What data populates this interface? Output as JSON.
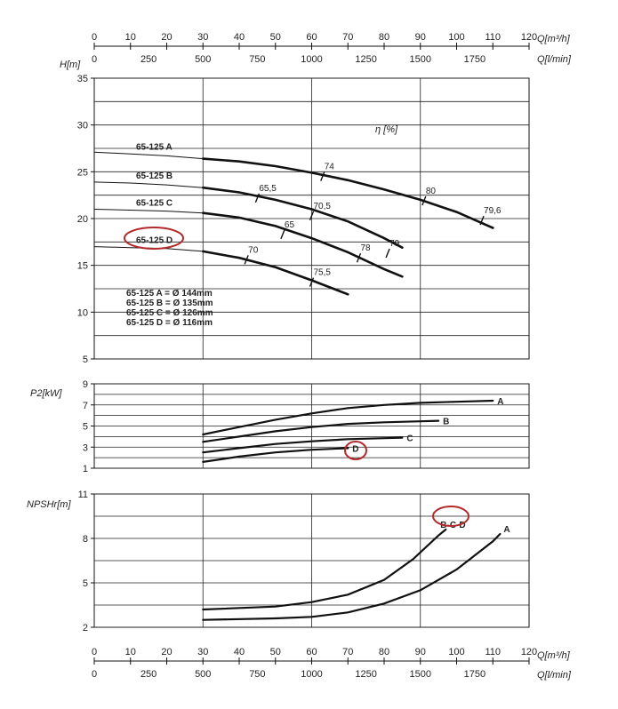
{
  "chart_data": [
    {
      "type": "line",
      "title": "",
      "ylabel": "H[m]",
      "eta_label": "η [%]",
      "xlabel_top_m3h": "Q[m³/h]",
      "xlabel_top_ls": "Q[l/min]",
      "xlabel_bottom_m3h": "Q[m³/h]",
      "xlabel_bottom_ls": "Q[l/min]",
      "xlim": [
        0,
        120
      ],
      "ylim": [
        5,
        35
      ],
      "yticks": [
        5,
        10,
        15,
        20,
        25,
        30,
        35
      ],
      "xticks_m3h": [
        0,
        10,
        20,
        30,
        40,
        50,
        60,
        70,
        80,
        90,
        100,
        110,
        120
      ],
      "xticks_lmin": [
        0,
        250,
        500,
        750,
        1000,
        1250,
        1500,
        1750
      ],
      "series": [
        {
          "name": "65-125 A",
          "thin": [
            [
              0,
              27.1
            ],
            [
              10,
              26.9
            ],
            [
              20,
              26.7
            ],
            [
              30,
              26.4
            ]
          ],
          "thick": [
            [
              30,
              26.4
            ],
            [
              40,
              26.1
            ],
            [
              50,
              25.6
            ],
            [
              60,
              24.9
            ],
            [
              70,
              24.1
            ],
            [
              80,
              23.1
            ],
            [
              90,
              22.0
            ],
            [
              100,
              20.7
            ],
            [
              110,
              19.0
            ]
          ]
        },
        {
          "name": "65-125 B",
          "thin": [
            [
              0,
              23.9
            ],
            [
              10,
              23.8
            ],
            [
              20,
              23.6
            ],
            [
              30,
              23.3
            ]
          ],
          "thick": [
            [
              30,
              23.3
            ],
            [
              40,
              22.8
            ],
            [
              50,
              22.0
            ],
            [
              60,
              21.0
            ],
            [
              70,
              19.7
            ],
            [
              80,
              17.9
            ],
            [
              85,
              16.9
            ]
          ]
        },
        {
          "name": "65-125 C",
          "thin": [
            [
              0,
              21.0
            ],
            [
              10,
              20.9
            ],
            [
              20,
              20.8
            ],
            [
              30,
              20.6
            ]
          ],
          "thick": [
            [
              30,
              20.6
            ],
            [
              40,
              20.1
            ],
            [
              50,
              19.2
            ],
            [
              60,
              17.9
            ],
            [
              70,
              16.4
            ],
            [
              80,
              14.6
            ],
            [
              85,
              13.8
            ]
          ]
        },
        {
          "name": "65-125 D",
          "thin": [
            [
              0,
              17.0
            ],
            [
              10,
              16.9
            ],
            [
              20,
              16.8
            ],
            [
              30,
              16.5
            ]
          ],
          "thick": [
            [
              30,
              16.5
            ],
            [
              40,
              15.8
            ],
            [
              50,
              14.8
            ],
            [
              60,
              13.4
            ],
            [
              70,
              11.9
            ]
          ]
        }
      ],
      "efficiency_marks": [
        {
          "label": "74",
          "x": 63,
          "y": 24.5
        },
        {
          "label": "80",
          "x": 91,
          "y": 21.9
        },
        {
          "label": "79,6",
          "x": 107,
          "y": 19.8
        },
        {
          "label": "65,5",
          "x": 45,
          "y": 22.2
        },
        {
          "label": "70,5",
          "x": 60,
          "y": 20.3
        },
        {
          "label": "79",
          "x": 81,
          "y": 16.3
        },
        {
          "label": "65",
          "x": 52,
          "y": 18.3
        },
        {
          "label": "78",
          "x": 73,
          "y": 15.8
        },
        {
          "label": "70",
          "x": 42,
          "y": 15.6
        },
        {
          "label": "75,5",
          "x": 60,
          "y": 13.2
        }
      ],
      "impeller_legend": [
        "65-125 A = Ø 144mm",
        "65-125 B = Ø 135mm",
        "65-125 C = Ø 126mm",
        "65-125 D = Ø 116mm"
      ],
      "highlighted": "65-125 D",
      "grid": true
    },
    {
      "type": "line",
      "title": "",
      "ylabel": "P2[kW]",
      "xlim": [
        0,
        120
      ],
      "ylim": [
        1,
        9
      ],
      "yticks": [
        1,
        3,
        5,
        7,
        9
      ],
      "series": [
        {
          "name": "A",
          "points": [
            [
              30,
              4.2
            ],
            [
              40,
              4.9
            ],
            [
              50,
              5.6
            ],
            [
              60,
              6.2
            ],
            [
              70,
              6.7
            ],
            [
              80,
              7.0
            ],
            [
              90,
              7.2
            ],
            [
              100,
              7.3
            ],
            [
              110,
              7.4
            ]
          ]
        },
        {
          "name": "B",
          "points": [
            [
              30,
              3.5
            ],
            [
              40,
              4.0
            ],
            [
              50,
              4.5
            ],
            [
              60,
              4.9
            ],
            [
              70,
              5.2
            ],
            [
              80,
              5.35
            ],
            [
              90,
              5.45
            ],
            [
              95,
              5.5
            ]
          ]
        },
        {
          "name": "C",
          "points": [
            [
              30,
              2.5
            ],
            [
              40,
              2.9
            ],
            [
              50,
              3.3
            ],
            [
              60,
              3.55
            ],
            [
              70,
              3.75
            ],
            [
              80,
              3.85
            ],
            [
              85,
              3.9
            ]
          ]
        },
        {
          "name": "D",
          "points": [
            [
              30,
              1.6
            ],
            [
              40,
              2.1
            ],
            [
              50,
              2.5
            ],
            [
              60,
              2.75
            ],
            [
              70,
              2.9
            ]
          ]
        }
      ],
      "highlighted": "D",
      "grid": true
    },
    {
      "type": "line",
      "title": "",
      "ylabel": "NPSHr[m]",
      "xlim": [
        0,
        120
      ],
      "ylim": [
        2,
        11
      ],
      "yticks": [
        2,
        5,
        8,
        11
      ],
      "series": [
        {
          "name": "A",
          "points": [
            [
              30,
              2.5
            ],
            [
              50,
              2.6
            ],
            [
              60,
              2.7
            ],
            [
              70,
              3.0
            ],
            [
              80,
              3.6
            ],
            [
              90,
              4.5
            ],
            [
              100,
              5.9
            ],
            [
              110,
              7.8
            ],
            [
              112,
              8.3
            ]
          ]
        },
        {
          "name": "B-C-D",
          "points": [
            [
              30,
              3.2
            ],
            [
              50,
              3.4
            ],
            [
              60,
              3.7
            ],
            [
              70,
              4.2
            ],
            [
              80,
              5.2
            ],
            [
              88,
              6.6
            ],
            [
              95,
              8.2
            ],
            [
              97,
              8.6
            ]
          ]
        }
      ],
      "highlighted": "B-C-D",
      "grid": true
    }
  ]
}
